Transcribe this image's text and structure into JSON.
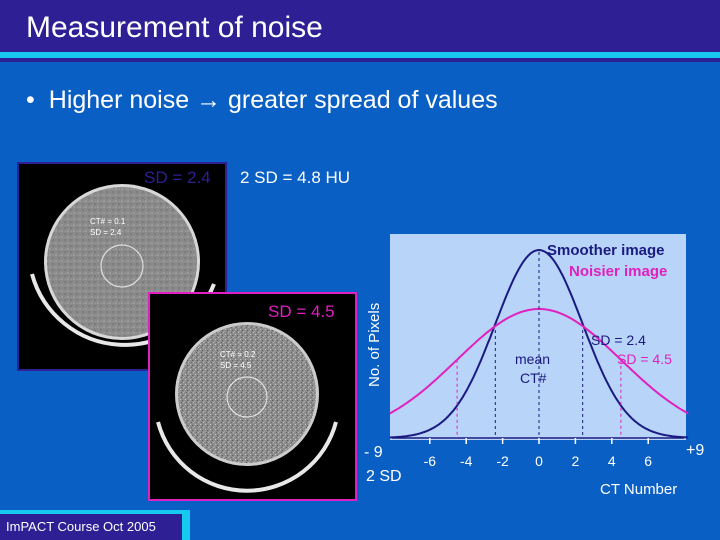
{
  "slide": {
    "title": "Measurement of noise",
    "bullet": "Higher noise → greater spread of values",
    "footer": "ImPACT Course Oct 2005"
  },
  "image1": {
    "sd_label": "SD = 2.4",
    "ct_line1": "CT# = 0.1",
    "ct_line2": "SD = 2.4",
    "border_color": "#2e1f95"
  },
  "image2": {
    "sd_label": "SD = 4.5",
    "ct_line1": "CT# = 0.2",
    "ct_line2": "SD = 4.5",
    "border_color": "#e020c0"
  },
  "two_sd_text": "2 SD = 4.8 HU",
  "chart_labels": {
    "ylabel": "No. of Pixels",
    "xlabel": "CT Number",
    "left_end": "- 9",
    "right_end": "+9",
    "two_sd": "2 SD",
    "mean_line1": "mean",
    "mean_line2": "CT#",
    "smoother": "Smoother image",
    "noisier": "Noisier image",
    "sd_smooth": "SD = 2.4",
    "sd_noisy": "SD = 4.5"
  },
  "chart_data": {
    "type": "line",
    "xlabel": "CT Number",
    "ylabel": "No. of Pixels",
    "xlim": [
      -9,
      9
    ],
    "xticks": [
      -6,
      -4,
      -2,
      0,
      2,
      4,
      6
    ],
    "xtick_labels": [
      "-6",
      "-4",
      "-2",
      "0",
      "2",
      "4",
      "6"
    ],
    "series": [
      {
        "name": "Smoother image",
        "sd": 2.4,
        "mean": 0,
        "color": "#1a1a80"
      },
      {
        "name": "Noisier image",
        "sd": 4.5,
        "mean": 0,
        "color": "#e020c0"
      }
    ]
  }
}
